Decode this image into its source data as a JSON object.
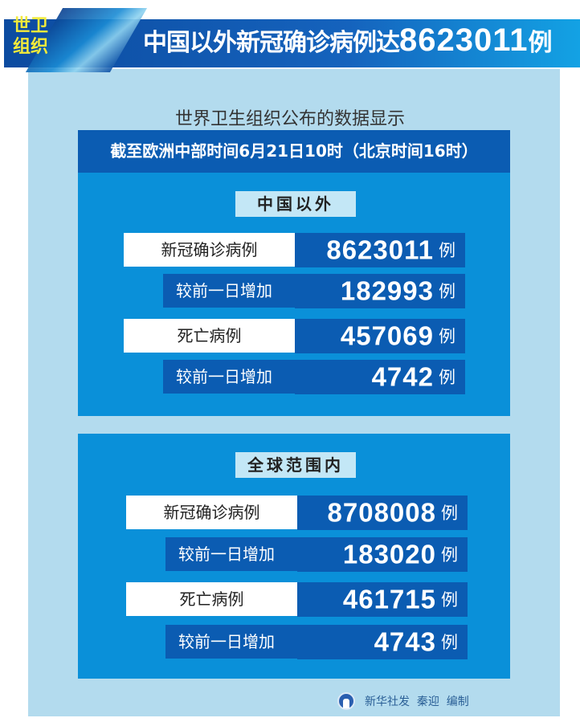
{
  "header": {
    "badge": "世卫组织",
    "title_text": "中国以外新冠确诊病例达",
    "title_number": "8623011",
    "title_unit": "例"
  },
  "subtitle": "世界卫生组织公布的数据显示",
  "date_band": "截至欧洲中部时间6月21日10时（北京时间16时）",
  "sections": [
    {
      "title": "中国以外",
      "rows": [
        {
          "label": "新冠确诊病例",
          "value": "8623011",
          "unit": "例"
        },
        {
          "label": "较前一日增加",
          "value": "182993",
          "unit": "例"
        },
        {
          "label": "死亡病例",
          "value": "457069",
          "unit": "例"
        },
        {
          "label": "较前一日增加",
          "value": "4742",
          "unit": "例"
        }
      ]
    },
    {
      "title": "全球范围内",
      "rows": [
        {
          "label": "新冠确诊病例",
          "value": "8708008",
          "unit": "例"
        },
        {
          "label": "较前一日增加",
          "value": "183020",
          "unit": "例"
        },
        {
          "label": "死亡病例",
          "value": "461715",
          "unit": "例"
        },
        {
          "label": "较前一日增加",
          "value": "4743",
          "unit": "例"
        }
      ]
    }
  ],
  "footer": {
    "credit": "新华社发  秦迎  编制"
  },
  "colors": {
    "dark_blue": "#0b5cb2",
    "section_blue": "#0a90d9",
    "panel": "#b3dbee",
    "badge_yellow": "#f3ea3a"
  }
}
